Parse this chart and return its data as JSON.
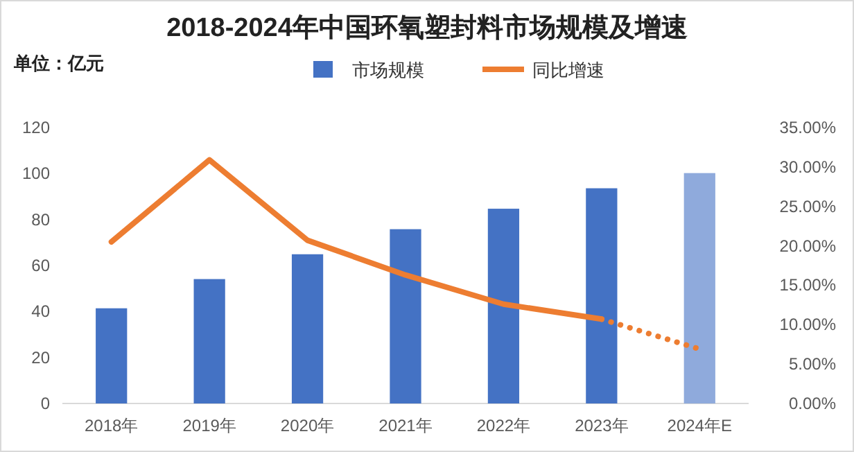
{
  "chart_data": {
    "type": "bar",
    "title": "2018-2024年中国环氧塑封料市场规模及增速",
    "annotations": [
      "单位：亿元"
    ],
    "categories": [
      "2018年",
      "2019年",
      "2020年",
      "2021年",
      "2022年",
      "2023年",
      "2024年E"
    ],
    "series": [
      {
        "name": "市场规模",
        "color": "#4472c4",
        "colors": [
          "#4472c4",
          "#4472c4",
          "#4472c4",
          "#4472c4",
          "#4472c4",
          "#4472c4",
          "#8faadc"
        ],
        "values": [
          41.4,
          54.1,
          64.9,
          75.8,
          84.7,
          93.6,
          100.2
        ]
      },
      {
        "type": "line",
        "name": "同比增速",
        "color": "#ed7d31",
        "axis": "y2",
        "line_style": "solid",
        "values": [
          20.5,
          30.9,
          20.7,
          16.3,
          12.6,
          10.7,
          null
        ]
      },
      {
        "type": "line",
        "color": "#ed7d31",
        "axis": "y2",
        "line_style": "dotted",
        "values": [
          null,
          null,
          null,
          null,
          null,
          10.7,
          6.9
        ]
      }
    ],
    "ylim": [
      0,
      120
    ],
    "yticks": [
      0,
      20,
      40,
      60,
      80,
      100,
      120
    ],
    "y2lim": [
      0,
      35
    ],
    "y2ticks": [
      {
        "value": 0,
        "label": "0.00%"
      },
      {
        "value": 5,
        "label": "5.00%"
      },
      {
        "value": 10,
        "label": "10.00%"
      },
      {
        "value": 15,
        "label": "15.00%"
      },
      {
        "value": 20,
        "label": "20.00%"
      },
      {
        "value": 25,
        "label": "25.00%"
      },
      {
        "value": 30,
        "label": "30.00%"
      },
      {
        "value": 35,
        "label": "35.00%"
      }
    ],
    "grid": false,
    "legend": "top"
  }
}
